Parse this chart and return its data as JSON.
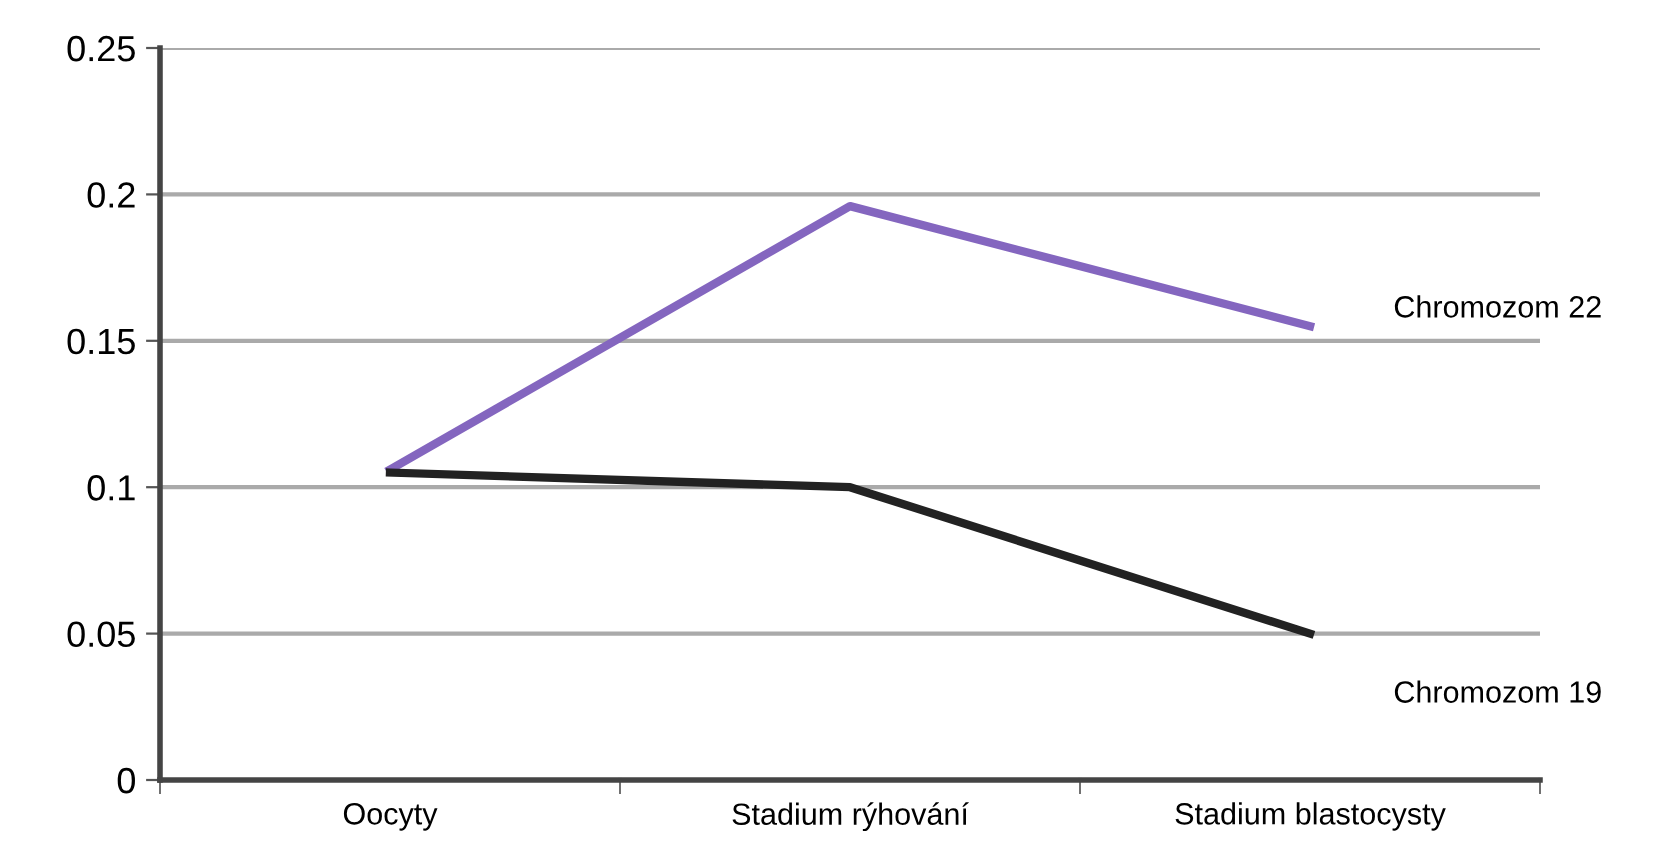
{
  "chart_data": {
    "type": "line",
    "categories": [
      "Oocyty",
      "Stadium rýhování",
      "Stadium blastocysty"
    ],
    "series": [
      {
        "name": "Chromozom 22",
        "color": "#8466bf",
        "values": [
          0.106,
          0.196,
          0.155
        ]
      },
      {
        "name": "Chromozom 19",
        "color": "#222222",
        "values": [
          0.105,
          0.1,
          0.05
        ]
      }
    ],
    "ylim": [
      0,
      0.25
    ],
    "yticks": [
      0,
      0.05,
      0.1,
      0.15,
      0.2,
      0.25
    ],
    "grid": "y",
    "marker": "none",
    "line_style": "solid",
    "legend": false
  }
}
